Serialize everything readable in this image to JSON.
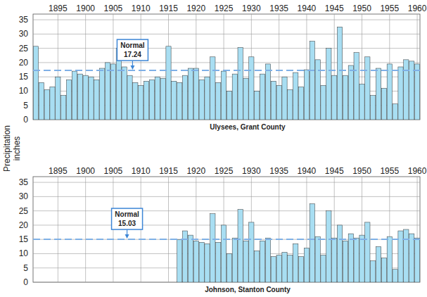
{
  "chart_data": [
    {
      "type": "bar",
      "title": "Ulysees, Grant County",
      "ylabel": [
        "Precipitation",
        "inches"
      ],
      "x": [
        1891,
        1892,
        1893,
        1894,
        1895,
        1896,
        1897,
        1898,
        1899,
        1900,
        1901,
        1902,
        1903,
        1904,
        1905,
        1906,
        1907,
        1908,
        1909,
        1910,
        1911,
        1912,
        1913,
        1914,
        1915,
        1916,
        1917,
        1918,
        1919,
        1920,
        1921,
        1922,
        1923,
        1924,
        1925,
        1926,
        1927,
        1928,
        1929,
        1930,
        1931,
        1932,
        1933,
        1934,
        1935,
        1936,
        1937,
        1938,
        1939,
        1940,
        1941,
        1942,
        1943,
        1944,
        1945,
        1946,
        1947,
        1948,
        1949,
        1950,
        1951,
        1952,
        1953,
        1954,
        1955,
        1956,
        1957,
        1958,
        1959,
        1960
      ],
      "values": [
        25.7,
        13,
        10.5,
        11.5,
        15,
        8.5,
        14,
        17,
        16,
        15.5,
        15,
        14,
        18,
        20,
        19.5,
        25,
        18.5,
        15.5,
        13,
        12,
        13.5,
        14,
        15,
        14.5,
        25.7,
        13.5,
        13,
        15.5,
        18,
        18,
        14,
        15,
        22,
        13,
        17,
        10,
        16,
        25.3,
        14.5,
        22,
        10,
        16,
        19.5,
        13.5,
        12,
        15,
        10.5,
        16.5,
        11.5,
        17.5,
        27.5,
        21,
        12,
        25,
        15.5,
        32.5,
        15.5,
        19,
        23.5,
        12.5,
        22,
        8.5,
        18,
        11,
        19.5,
        5.5,
        18.5,
        21,
        20.5,
        19.5
      ],
      "color": "#a8def2",
      "xlim": [
        1890.5,
        1960.5
      ],
      "xticks": [
        1895,
        1900,
        1905,
        1910,
        1915,
        1920,
        1925,
        1930,
        1935,
        1940,
        1945,
        1950,
        1955,
        1960
      ],
      "ylim": [
        0,
        37
      ],
      "yticks": [
        0,
        5,
        10,
        15,
        20,
        25,
        30,
        35
      ],
      "grid": true,
      "normal": {
        "label": "Normal",
        "value": 17.24
      }
    },
    {
      "type": "bar",
      "title": "Johnson, Stanton County",
      "x": [
        1917,
        1918,
        1919,
        1920,
        1921,
        1922,
        1923,
        1924,
        1925,
        1926,
        1927,
        1928,
        1929,
        1930,
        1931,
        1932,
        1933,
        1934,
        1935,
        1936,
        1937,
        1938,
        1939,
        1940,
        1941,
        1942,
        1943,
        1944,
        1945,
        1946,
        1947,
        1948,
        1949,
        1950,
        1951,
        1952,
        1953,
        1954,
        1955,
        1956,
        1957,
        1958,
        1959,
        1960
      ],
      "values": [
        15,
        18,
        16.5,
        14.5,
        14,
        13.5,
        24,
        14,
        20,
        10,
        15.5,
        25.5,
        14.5,
        21,
        11,
        14.5,
        15.5,
        9,
        9.5,
        10.5,
        9.5,
        13.5,
        9,
        12,
        27.5,
        16,
        9.5,
        25,
        15.5,
        20,
        14.5,
        17,
        15.5,
        16.5,
        21,
        7.5,
        12.5,
        8.5,
        16,
        4.5,
        18,
        18.5,
        17,
        15.5
      ],
      "color": "#a8def2",
      "xlim": [
        1890.5,
        1960.5
      ],
      "xticks": [
        1895,
        1900,
        1905,
        1910,
        1915,
        1920,
        1925,
        1930,
        1935,
        1940,
        1945,
        1950,
        1955,
        1960
      ],
      "ylim": [
        0,
        37
      ],
      "yticks": [
        0,
        5,
        10,
        15,
        20,
        25,
        30,
        35
      ],
      "grid": true,
      "normal": {
        "label": "Normal",
        "value": 15.03
      }
    }
  ]
}
